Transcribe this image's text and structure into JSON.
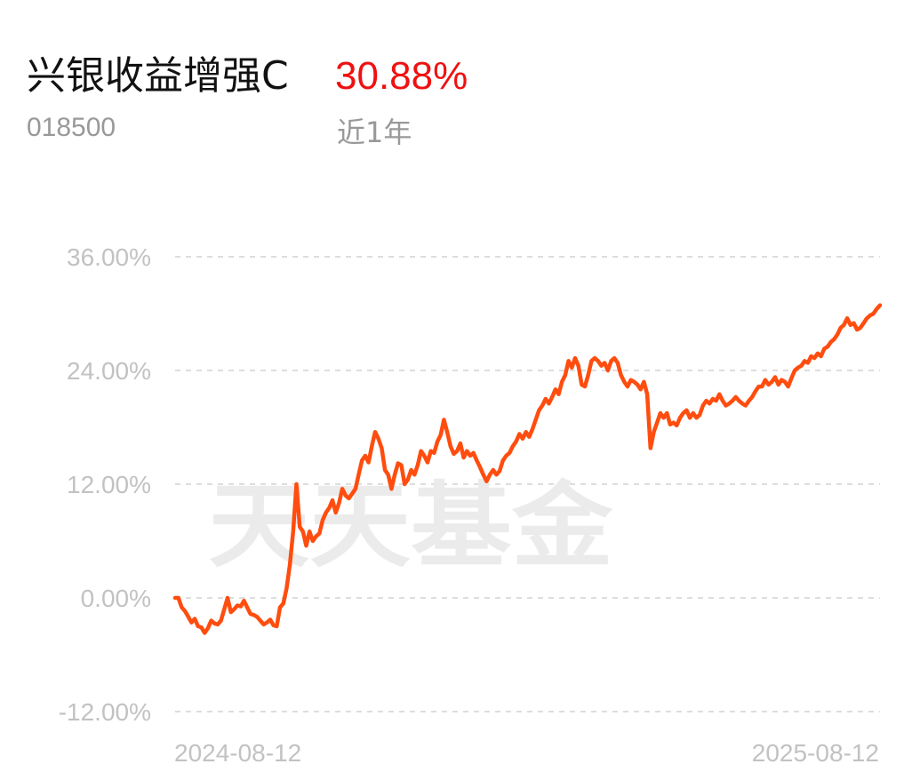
{
  "header": {
    "fund_name": "兴银收益增强C",
    "return_value": "30.88%",
    "fund_code": "018500",
    "period": "近1年"
  },
  "watermark": "天天基金",
  "colors": {
    "line": "#ff4d0f",
    "return_value": "#ee1111",
    "grid": "#dddddd",
    "tick_text": "#c2c2c2"
  },
  "chart_data": {
    "type": "line",
    "title": "",
    "xlabel": "",
    "ylabel": "",
    "ylim": [
      -12,
      36
    ],
    "y_ticks": [
      36,
      24,
      12,
      0,
      -12
    ],
    "y_tick_labels": [
      "36.00%",
      "24.00%",
      "12.00%",
      "0.00%",
      "-12.00%"
    ],
    "x_range": [
      "2024-08-12",
      "2025-08-12"
    ],
    "x_tick_labels": [
      "2024-08-12",
      "2025-08-12"
    ],
    "grid": true,
    "legend": "none",
    "series": [
      {
        "values": [
          [
            0,
            0.0
          ],
          [
            1,
            0.0
          ],
          [
            2,
            -1.0
          ],
          [
            3,
            -1.4
          ],
          [
            4,
            -2.0
          ],
          [
            5,
            -2.6
          ],
          [
            6,
            -2.2
          ],
          [
            7,
            -3.0
          ],
          [
            8,
            -3.1
          ],
          [
            9,
            -3.7
          ],
          [
            10,
            -3.2
          ],
          [
            11,
            -2.4
          ],
          [
            12,
            -2.7
          ],
          [
            13,
            -2.8
          ],
          [
            14,
            -2.4
          ],
          [
            15,
            -1.2
          ],
          [
            16,
            0.0
          ],
          [
            17,
            -1.5
          ],
          [
            18,
            -1.2
          ],
          [
            19,
            -0.8
          ],
          [
            20,
            -0.9
          ],
          [
            21,
            -0.3
          ],
          [
            22,
            -1.0
          ],
          [
            23,
            -1.7
          ],
          [
            24,
            -1.8
          ],
          [
            25,
            -2.0
          ],
          [
            26,
            -2.4
          ],
          [
            27,
            -2.8
          ],
          [
            28,
            -2.6
          ],
          [
            29,
            -2.3
          ],
          [
            30,
            -2.9
          ],
          [
            31,
            -3.0
          ],
          [
            32,
            -1.0
          ],
          [
            33,
            -0.6
          ],
          [
            34,
            1.0
          ],
          [
            35,
            3.5
          ],
          [
            36,
            7.0
          ],
          [
            37,
            12.0
          ],
          [
            38,
            7.5
          ],
          [
            39,
            7.0
          ],
          [
            40,
            5.5
          ],
          [
            41,
            7.0
          ],
          [
            42,
            6.0
          ],
          [
            43,
            6.5
          ],
          [
            44,
            6.8
          ],
          [
            45,
            8.2
          ],
          [
            46,
            9.0
          ],
          [
            47,
            9.5
          ],
          [
            48,
            10.3
          ],
          [
            49,
            9.0
          ],
          [
            50,
            10.0
          ],
          [
            51,
            11.5
          ],
          [
            52,
            10.8
          ],
          [
            53,
            10.5
          ],
          [
            54,
            11.0
          ],
          [
            55,
            11.5
          ],
          [
            56,
            13.0
          ],
          [
            57,
            14.5
          ],
          [
            58,
            15.0
          ],
          [
            59,
            14.3
          ],
          [
            60,
            16.0
          ],
          [
            61,
            17.5
          ],
          [
            62,
            16.8
          ],
          [
            63,
            15.8
          ],
          [
            64,
            13.5
          ],
          [
            65,
            13.0
          ],
          [
            66,
            11.5
          ],
          [
            67,
            13.0
          ],
          [
            68,
            14.2
          ],
          [
            69,
            14.0
          ],
          [
            70,
            12.0
          ],
          [
            71,
            12.5
          ],
          [
            72,
            13.5
          ],
          [
            73,
            13.0
          ],
          [
            74,
            14.0
          ],
          [
            75,
            15.5
          ],
          [
            76,
            15.0
          ],
          [
            77,
            14.3
          ],
          [
            78,
            15.5
          ],
          [
            79,
            15.3
          ],
          [
            80,
            16.5
          ],
          [
            81,
            17.2
          ],
          [
            82,
            18.8
          ],
          [
            83,
            17.5
          ],
          [
            84,
            16.0
          ],
          [
            85,
            15.2
          ],
          [
            86,
            15.5
          ],
          [
            87,
            16.3
          ],
          [
            88,
            14.8
          ],
          [
            89,
            15.5
          ],
          [
            90,
            15.0
          ],
          [
            91,
            15.3
          ],
          [
            92,
            14.5
          ],
          [
            93,
            13.8
          ],
          [
            94,
            13.0
          ],
          [
            95,
            12.3
          ],
          [
            96,
            13.0
          ],
          [
            97,
            13.5
          ],
          [
            98,
            13.0
          ],
          [
            99,
            13.4
          ],
          [
            100,
            14.5
          ],
          [
            101,
            15.0
          ],
          [
            102,
            15.3
          ],
          [
            103,
            16.0
          ],
          [
            104,
            16.5
          ],
          [
            105,
            17.3
          ],
          [
            106,
            16.8
          ],
          [
            107,
            17.5
          ],
          [
            108,
            17.0
          ],
          [
            109,
            17.8
          ],
          [
            110,
            18.8
          ],
          [
            111,
            19.8
          ],
          [
            112,
            20.3
          ],
          [
            113,
            21.0
          ],
          [
            114,
            20.5
          ],
          [
            115,
            21.2
          ],
          [
            116,
            22.0
          ],
          [
            117,
            21.5
          ],
          [
            118,
            22.8
          ],
          [
            119,
            23.5
          ],
          [
            120,
            25.0
          ],
          [
            121,
            24.3
          ],
          [
            122,
            25.3
          ],
          [
            123,
            24.5
          ],
          [
            124,
            22.5
          ],
          [
            125,
            22.3
          ],
          [
            126,
            23.5
          ],
          [
            127,
            25.0
          ],
          [
            128,
            25.3
          ],
          [
            129,
            25.0
          ],
          [
            130,
            24.5
          ],
          [
            131,
            24.8
          ],
          [
            132,
            24.0
          ],
          [
            133,
            25.0
          ],
          [
            134,
            25.3
          ],
          [
            135,
            24.8
          ],
          [
            136,
            23.5
          ],
          [
            137,
            22.8
          ],
          [
            138,
            22.3
          ],
          [
            139,
            23.0
          ],
          [
            140,
            22.8
          ],
          [
            141,
            22.5
          ],
          [
            142,
            22.0
          ],
          [
            143,
            22.8
          ],
          [
            144,
            21.5
          ],
          [
            145,
            15.8
          ],
          [
            146,
            17.5
          ],
          [
            147,
            18.5
          ],
          [
            148,
            19.5
          ],
          [
            149,
            19.0
          ],
          [
            150,
            19.5
          ],
          [
            151,
            18.3
          ],
          [
            152,
            18.5
          ],
          [
            153,
            18.2
          ],
          [
            154,
            19.0
          ],
          [
            155,
            19.5
          ],
          [
            156,
            19.8
          ],
          [
            157,
            19.0
          ],
          [
            158,
            19.5
          ],
          [
            159,
            19.0
          ],
          [
            160,
            19.3
          ],
          [
            161,
            20.3
          ],
          [
            162,
            20.8
          ],
          [
            163,
            20.5
          ],
          [
            164,
            21.0
          ],
          [
            165,
            20.8
          ],
          [
            166,
            21.5
          ],
          [
            167,
            20.8
          ],
          [
            168,
            20.3
          ],
          [
            169,
            20.5
          ],
          [
            170,
            20.8
          ],
          [
            171,
            21.2
          ],
          [
            172,
            20.8
          ],
          [
            173,
            20.5
          ],
          [
            174,
            20.3
          ],
          [
            175,
            20.8
          ],
          [
            176,
            21.2
          ],
          [
            177,
            21.8
          ],
          [
            178,
            22.3
          ],
          [
            179,
            22.3
          ],
          [
            180,
            23.0
          ],
          [
            181,
            22.5
          ],
          [
            182,
            22.8
          ],
          [
            183,
            23.3
          ],
          [
            184,
            22.5
          ],
          [
            185,
            23.0
          ],
          [
            186,
            22.8
          ],
          [
            187,
            22.3
          ],
          [
            188,
            23.2
          ],
          [
            189,
            24.0
          ],
          [
            190,
            24.3
          ],
          [
            191,
            24.5
          ],
          [
            192,
            25.0
          ],
          [
            193,
            24.8
          ],
          [
            194,
            25.5
          ],
          [
            195,
            25.3
          ],
          [
            196,
            25.8
          ],
          [
            197,
            25.5
          ],
          [
            198,
            26.3
          ],
          [
            199,
            26.5
          ],
          [
            200,
            27.0
          ],
          [
            201,
            27.3
          ],
          [
            202,
            27.8
          ],
          [
            203,
            28.5
          ],
          [
            204,
            28.8
          ],
          [
            205,
            29.5
          ],
          [
            206,
            28.8
          ],
          [
            207,
            29.0
          ],
          [
            208,
            28.3
          ],
          [
            209,
            28.5
          ],
          [
            210,
            29.0
          ],
          [
            211,
            29.5
          ],
          [
            212,
            29.8
          ],
          [
            213,
            30.0
          ],
          [
            214,
            30.5
          ],
          [
            215,
            30.88
          ]
        ]
      }
    ]
  }
}
